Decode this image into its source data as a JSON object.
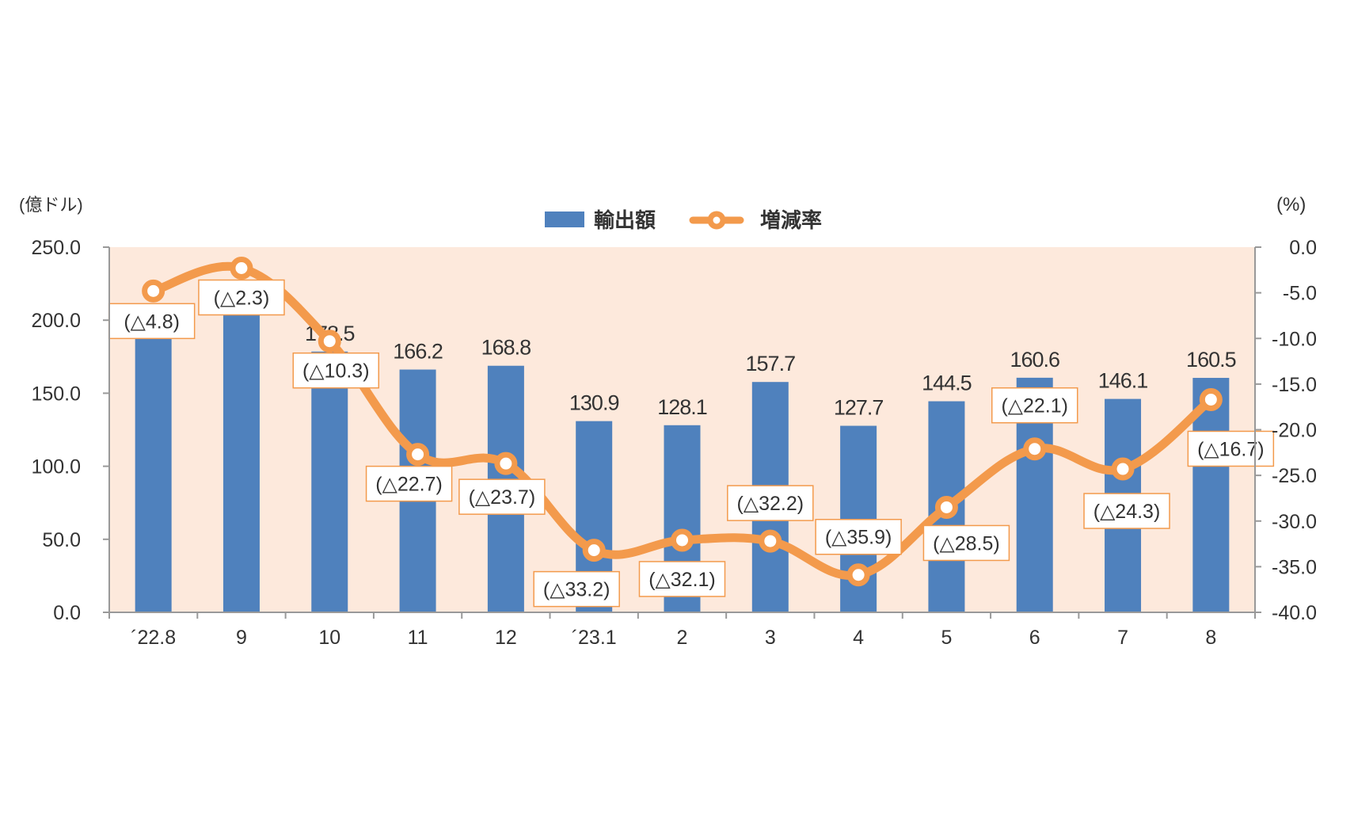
{
  "chart_data": {
    "type": "bar",
    "left_unit_label": "(億ドル)",
    "right_unit_label": "(%)",
    "categories": [
      "´22.8",
      "9",
      "10",
      "11",
      "12",
      "´23.1",
      "2",
      "3",
      "4",
      "5",
      "6",
      "7",
      "8"
    ],
    "series": [
      {
        "name": "輸出額",
        "kind": "bar",
        "axis": "left",
        "color": "#4f81bd",
        "values": [
          192.7,
          208.5,
          178.5,
          166.2,
          168.8,
          130.9,
          128.1,
          157.7,
          127.7,
          144.5,
          160.6,
          146.1,
          160.5
        ],
        "labels": [
          "192.7",
          "208.5",
          "178.5",
          "166.2",
          "168.8",
          "130.9",
          "128.1",
          "157.7",
          "127.7",
          "144.5",
          "160.6",
          "146.1",
          "160.5"
        ]
      },
      {
        "name": "増減率",
        "kind": "line",
        "axis": "right",
        "color": "#f39a4c",
        "values": [
          -4.8,
          -2.3,
          -10.3,
          -22.7,
          -23.7,
          -33.2,
          -32.1,
          -32.2,
          -35.9,
          -28.5,
          -22.1,
          -24.3,
          -16.7
        ],
        "labels": [
          "(△4.8)",
          "(△2.3)",
          "(△10.3)",
          "(△22.7)",
          "(△23.7)",
          "(△33.2)",
          "(△32.1)",
          "(△32.2)",
          "(△35.9)",
          "(△28.5)",
          "(△22.1)",
          "(△24.3)",
          "(△16.7)"
        ]
      }
    ],
    "y_left": {
      "min": 0,
      "max": 250,
      "ticks": [
        "0.0",
        "50.0",
        "100.0",
        "150.0",
        "200.0",
        "250.0"
      ]
    },
    "y_right": {
      "min": -40,
      "max": 0,
      "ticks": [
        "-40.0",
        "-35.0",
        "-30.0",
        "-25.0",
        "-20.0",
        "-15.0",
        "-10.0",
        "-5.0",
        "0.0"
      ]
    },
    "plot_background": "#fde9dc",
    "grid": false,
    "legend_position": "top-center"
  }
}
